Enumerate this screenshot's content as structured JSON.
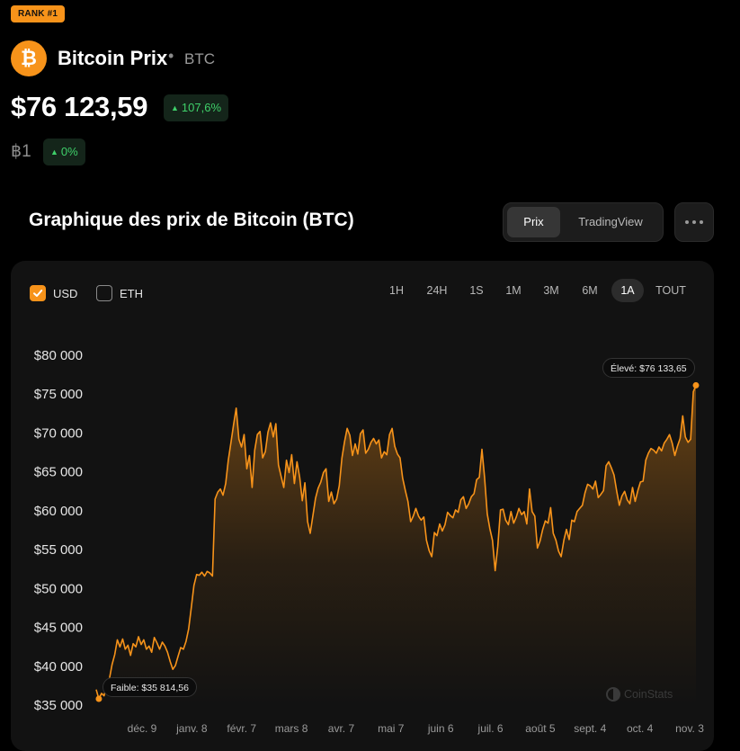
{
  "rank_label": "RANK #1",
  "coin": {
    "name": "Bitcoin Prix",
    "separator": "•",
    "ticker": "BTC",
    "price": "$76 123,59",
    "change_percent": "107,6%",
    "btc_amount": "฿1",
    "btc_change": "0%"
  },
  "icons": {
    "logo": "bitcoin-icon",
    "up": "triangle-up-icon",
    "more": "more-dots-icon",
    "check": "check-icon",
    "watermark": "coinstats-icon"
  },
  "colors": {
    "accent": "#f7931a",
    "positive": "#3fd06a",
    "card": "#121212"
  },
  "chart_section": {
    "title": "Graphique des prix de Bitcoin (BTC)",
    "view_tabs": [
      {
        "label": "Prix",
        "active": true
      },
      {
        "label": "TradingView",
        "active": false
      }
    ],
    "currency_options": [
      {
        "label": "USD",
        "checked": true
      },
      {
        "label": "ETH",
        "checked": false
      }
    ],
    "time_ranges": [
      {
        "label": "1H",
        "active": false
      },
      {
        "label": "24H",
        "active": false
      },
      {
        "label": "1S",
        "active": false
      },
      {
        "label": "1M",
        "active": false
      },
      {
        "label": "3M",
        "active": false
      },
      {
        "label": "6M",
        "active": false
      },
      {
        "label": "1A",
        "active": true
      },
      {
        "label": "TOUT",
        "active": false
      }
    ],
    "high_label": "Élevé: $76 133,65",
    "low_label": "Faible: $35 814,56",
    "watermark": "CoinStats"
  },
  "chart_data": {
    "type": "area",
    "series": [
      {
        "values": [
          37000,
          35814,
          36500,
          36200,
          37800,
          38400,
          40200,
          41500,
          43400,
          42500,
          43500,
          42200,
          42700,
          41400,
          42900,
          42500,
          43800,
          42800,
          43400,
          42200,
          42600,
          41800,
          43700,
          43000,
          42200,
          43100,
          42600,
          41800,
          40600,
          39600,
          40100,
          41300,
          42400,
          42200,
          43200,
          44800,
          47600,
          50400,
          51800,
          51700,
          52100,
          51600,
          52200,
          52000,
          51600,
          61500,
          62400,
          62800,
          62000,
          63500,
          66500,
          68800,
          71100,
          73200,
          69200,
          68200,
          69800,
          65400,
          67100,
          63000,
          67800,
          69800,
          70200,
          66800,
          67600,
          70100,
          71300,
          69500,
          71200,
          65900,
          64400,
          63000,
          66500,
          64900,
          67200,
          63500,
          66300,
          64300,
          61300,
          63600,
          58600,
          57100,
          59300,
          61600,
          62900,
          63700,
          64900,
          65400,
          61200,
          62400,
          60900,
          61500,
          63200,
          66800,
          68900,
          70600,
          69700,
          67100,
          68600,
          67300,
          69900,
          70400,
          67400,
          67900,
          68800,
          69300,
          68600,
          69100,
          66800,
          67600,
          67200,
          69800,
          70600,
          68300,
          67300,
          66800,
          64200,
          62600,
          61200,
          58600,
          59300,
          60300,
          59300,
          58800,
          59200,
          56200,
          54900,
          54100,
          57200,
          56800,
          58300,
          57400,
          58200,
          59800,
          59400,
          59100,
          60100,
          59800,
          61400,
          61800,
          60300,
          60900,
          61800,
          62200,
          64000,
          64300,
          67900,
          64300,
          59600,
          57700,
          56200,
          52300,
          55400,
          60100,
          60200,
          58800,
          58200,
          59900,
          58400,
          59200,
          60300,
          59500,
          59900,
          58300,
          62800,
          59900,
          59300,
          55200,
          56100,
          57600,
          58700,
          58400,
          60400,
          57100,
          56200,
          54800,
          54100,
          56200,
          57600,
          56300,
          58800,
          58600,
          59900,
          60300,
          60700,
          62300,
          63400,
          63200,
          62800,
          63800,
          61700,
          62100,
          62600,
          65800,
          66300,
          65500,
          64600,
          62500,
          60700,
          61900,
          62500,
          61400,
          60900,
          63000,
          61200,
          62600,
          63700,
          63800,
          66500,
          67400,
          68000,
          67800,
          67400,
          68200,
          67700,
          68700,
          69200,
          69800,
          68700,
          67100,
          68300,
          69300,
          72200,
          69500,
          68800,
          69200,
          75300,
          76133
        ]
      }
    ],
    "x_tick_labels": [
      "déc. 9",
      "janv. 8",
      "févr. 7",
      "mars 8",
      "avr. 7",
      "mai 7",
      "juin 6",
      "juil. 6",
      "août 5",
      "sept. 4",
      "oct. 4",
      "nov. 3"
    ],
    "y_tick_values": [
      35000,
      40000,
      45000,
      50000,
      55000,
      60000,
      65000,
      70000,
      75000,
      80000
    ],
    "y_tick_labels": [
      "$35 000",
      "$40 000",
      "$45 000",
      "$50 000",
      "$55 000",
      "$60 000",
      "$65 000",
      "$70 000",
      "$75 000",
      "$80 000"
    ],
    "ylim": [
      35000,
      80000
    ],
    "high": 76133.65,
    "low": 35814.56,
    "grid": false
  }
}
